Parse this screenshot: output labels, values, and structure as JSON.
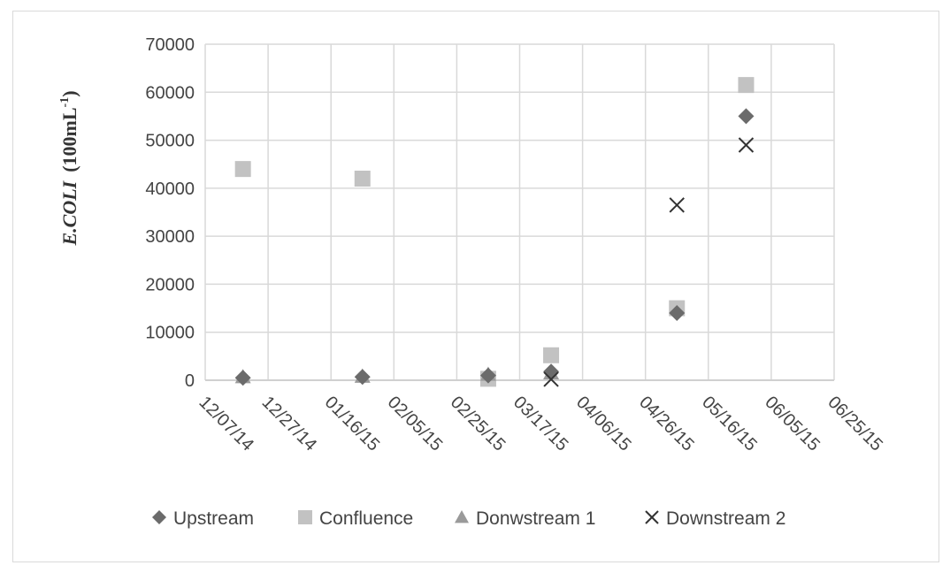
{
  "chart_data": {
    "type": "scatter",
    "title": "",
    "xlabel": "",
    "ylabel_main": "E.COLI",
    "ylabel_unit": "(100mL",
    "ylabel_sup": "-1",
    "ylabel_close": ")",
    "ylim": [
      0,
      70000
    ],
    "xlim": [
      "2014-12-07",
      "2015-06-25"
    ],
    "y_ticks": [
      "0",
      "10000",
      "20000",
      "30000",
      "40000",
      "50000",
      "60000",
      "70000"
    ],
    "x_ticks": [
      "12/07/14",
      "12/27/14",
      "01/16/15",
      "02/05/15",
      "02/25/15",
      "03/17/15",
      "04/06/15",
      "04/26/15",
      "05/16/15",
      "06/05/15",
      "06/25/15"
    ],
    "grid": true,
    "legend_position": "bottom",
    "series": [
      {
        "name": "Upstream",
        "marker": "diamond",
        "color": "#6b6b6b",
        "points": [
          {
            "x": "2014-12-19",
            "y": 500
          },
          {
            "x": "2015-01-26",
            "y": 700
          },
          {
            "x": "2015-03-07",
            "y": 1000
          },
          {
            "x": "2015-03-27",
            "y": 1800
          },
          {
            "x": "2015-05-06",
            "y": 14000
          },
          {
            "x": "2015-05-28",
            "y": 55000
          }
        ]
      },
      {
        "name": "Confluence",
        "marker": "square",
        "color": "#c2c2c2",
        "points": [
          {
            "x": "2014-12-19",
            "y": 44000
          },
          {
            "x": "2015-01-26",
            "y": 42000
          },
          {
            "x": "2015-03-07",
            "y": 300
          },
          {
            "x": "2015-03-27",
            "y": 5200
          },
          {
            "x": "2015-05-06",
            "y": 15000
          },
          {
            "x": "2015-05-28",
            "y": 61500
          }
        ]
      },
      {
        "name": "Donwstream 1",
        "marker": "triangle",
        "color": "#9a9a9a",
        "points": [
          {
            "x": "2014-12-19",
            "y": 700
          },
          {
            "x": "2015-01-26",
            "y": 800
          },
          {
            "x": "2015-03-07",
            "y": 1200
          },
          {
            "x": "2015-03-27",
            "y": 1500
          }
        ]
      },
      {
        "name": "Downstream 2",
        "marker": "x",
        "color": "#333333",
        "points": [
          {
            "x": "2015-03-27",
            "y": 200
          },
          {
            "x": "2015-05-06",
            "y": 36500
          },
          {
            "x": "2015-05-28",
            "y": 49000
          }
        ]
      }
    ]
  }
}
